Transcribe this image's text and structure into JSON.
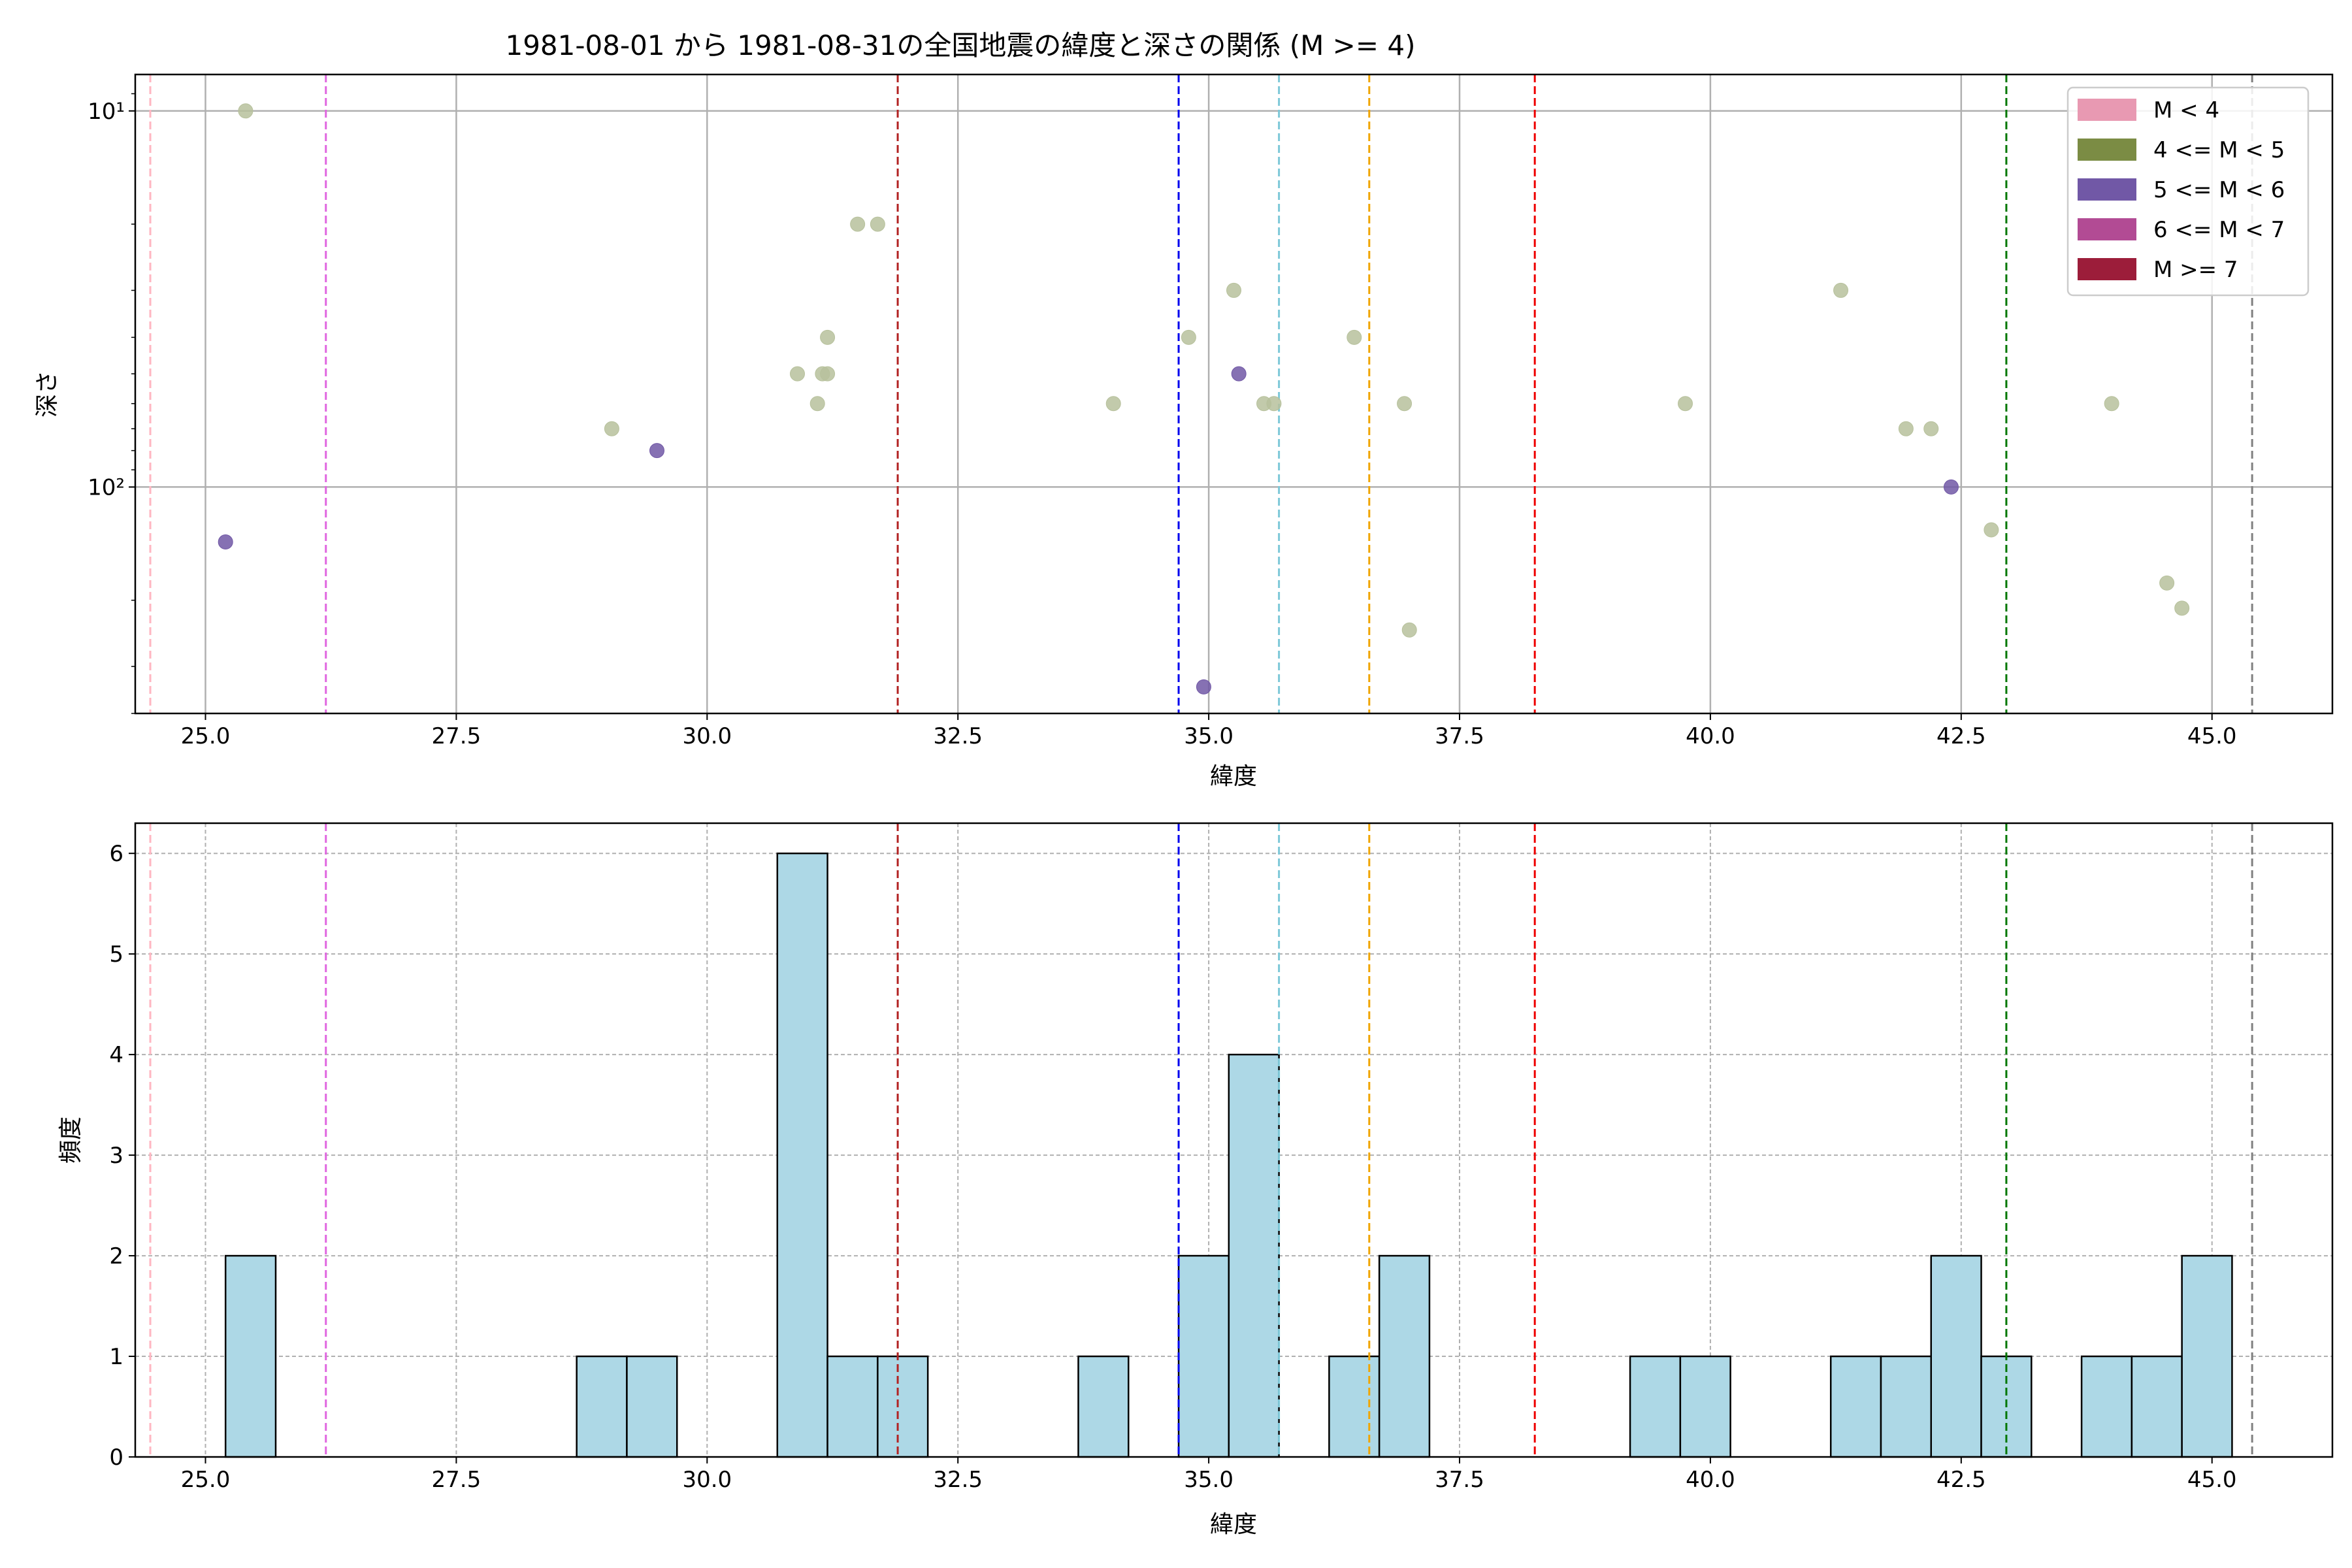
{
  "chart_data": [
    {
      "type": "scatter",
      "title": "1981-08-01 から 1981-08-31の全国地震の緯度と深さの関係 (M >= 4)",
      "xlabel": "緯度",
      "ylabel": "深さ",
      "xlim": [
        24.3,
        46.2
      ],
      "ylim": [
        400,
        8
      ],
      "yscale": "log (inverted)",
      "x_ticks": [
        "25.0",
        "27.5",
        "30.0",
        "32.5",
        "35.0",
        "37.5",
        "40.0",
        "42.5",
        "45.0"
      ],
      "y_tick_labels": [
        {
          "value": 10,
          "label": "10¹"
        },
        {
          "value": 100,
          "label": "10²"
        }
      ],
      "grid": true,
      "legend_position": "top-right",
      "legend": [
        {
          "label": "M < 4",
          "color": "#e899b2"
        },
        {
          "label": "4 <= M < 5",
          "color": "#7b8c44"
        },
        {
          "label": "5 <= M < 6",
          "color": "#7158a6"
        },
        {
          "label": "6 <= M < 7",
          "color": "#b24b94"
        },
        {
          "label": "M >= 7",
          "color": "#9c1d3a"
        }
      ],
      "series": [
        {
          "name": "4 <= M < 5",
          "color": "#b7c19c",
          "points": [
            {
              "x": 25.4,
              "y": 10
            },
            {
              "x": 29.05,
              "y": 70
            },
            {
              "x": 30.9,
              "y": 50
            },
            {
              "x": 31.1,
              "y": 60
            },
            {
              "x": 31.15,
              "y": 50
            },
            {
              "x": 31.2,
              "y": 50
            },
            {
              "x": 31.2,
              "y": 40
            },
            {
              "x": 31.5,
              "y": 20
            },
            {
              "x": 31.7,
              "y": 20
            },
            {
              "x": 34.05,
              "y": 60
            },
            {
              "x": 34.8,
              "y": 40
            },
            {
              "x": 35.25,
              "y": 30
            },
            {
              "x": 35.55,
              "y": 60
            },
            {
              "x": 35.65,
              "y": 60
            },
            {
              "x": 36.45,
              "y": 40
            },
            {
              "x": 36.95,
              "y": 60
            },
            {
              "x": 37.0,
              "y": 240
            },
            {
              "x": 39.75,
              "y": 60
            },
            {
              "x": 41.3,
              "y": 30
            },
            {
              "x": 41.95,
              "y": 70
            },
            {
              "x": 42.2,
              "y": 70
            },
            {
              "x": 42.8,
              "y": 130
            },
            {
              "x": 44.0,
              "y": 60
            },
            {
              "x": 44.55,
              "y": 180
            },
            {
              "x": 44.7,
              "y": 210
            }
          ]
        },
        {
          "name": "5 <= M < 6",
          "color": "#7158a6",
          "points": [
            {
              "x": 25.2,
              "y": 140
            },
            {
              "x": 29.5,
              "y": 80
            },
            {
              "x": 34.95,
              "y": 340
            },
            {
              "x": 35.3,
              "y": 50
            },
            {
              "x": 42.4,
              "y": 100
            }
          ]
        }
      ],
      "vlines": [
        {
          "x": 24.45,
          "color": "#ffb6c1"
        },
        {
          "x": 26.2,
          "color": "#e066e0"
        },
        {
          "x": 31.9,
          "color": "#b22222"
        },
        {
          "x": 34.7,
          "color": "#0000ee"
        },
        {
          "x": 35.7,
          "color": "#7ec8d8"
        },
        {
          "x": 36.6,
          "color": "#f0a500"
        },
        {
          "x": 38.25,
          "color": "#ee0000"
        },
        {
          "x": 42.95,
          "color": "#007700"
        },
        {
          "x": 45.4,
          "color": "#808080"
        }
      ]
    },
    {
      "type": "bar",
      "subtype": "histogram",
      "xlabel": "緯度",
      "ylabel": "頻度",
      "xlim": [
        24.3,
        46.2
      ],
      "ylim": [
        0,
        6.3
      ],
      "x_ticks": [
        "25.0",
        "27.5",
        "30.0",
        "32.5",
        "35.0",
        "37.5",
        "40.0",
        "42.5",
        "45.0"
      ],
      "y_ticks": [
        "0",
        "1",
        "2",
        "3",
        "4",
        "5",
        "6"
      ],
      "grid": true,
      "bar_color": "#add8e6",
      "bin_edges": [
        25.2,
        25.7,
        26.2,
        26.7,
        27.2,
        27.7,
        28.2,
        28.7,
        29.2,
        29.7,
        30.2,
        30.7,
        31.2,
        31.7,
        32.2,
        32.7,
        33.2,
        33.7,
        34.2,
        34.7,
        35.2,
        35.7,
        36.2,
        36.7,
        37.2,
        37.7,
        38.2,
        38.7,
        39.2,
        39.7,
        40.2,
        40.7,
        41.2,
        41.7,
        42.2,
        42.7,
        43.2,
        43.7,
        44.2,
        44.7,
        45.2
      ],
      "counts": [
        2,
        0,
        0,
        0,
        0,
        0,
        0,
        1,
        1,
        0,
        0,
        6,
        1,
        1,
        0,
        0,
        0,
        1,
        0,
        2,
        4,
        0,
        1,
        2,
        0,
        0,
        0,
        0,
        1,
        1,
        0,
        0,
        1,
        1,
        2,
        1,
        0,
        1,
        1,
        2
      ],
      "vlines": [
        {
          "x": 24.45,
          "color": "#ffb6c1"
        },
        {
          "x": 26.2,
          "color": "#e066e0"
        },
        {
          "x": 31.9,
          "color": "#b22222"
        },
        {
          "x": 34.7,
          "color": "#0000ee"
        },
        {
          "x": 35.7,
          "color": "#7ec8d8"
        },
        {
          "x": 36.6,
          "color": "#f0a500"
        },
        {
          "x": 38.25,
          "color": "#ee0000"
        },
        {
          "x": 42.95,
          "color": "#007700"
        },
        {
          "x": 45.4,
          "color": "#808080"
        }
      ]
    }
  ]
}
